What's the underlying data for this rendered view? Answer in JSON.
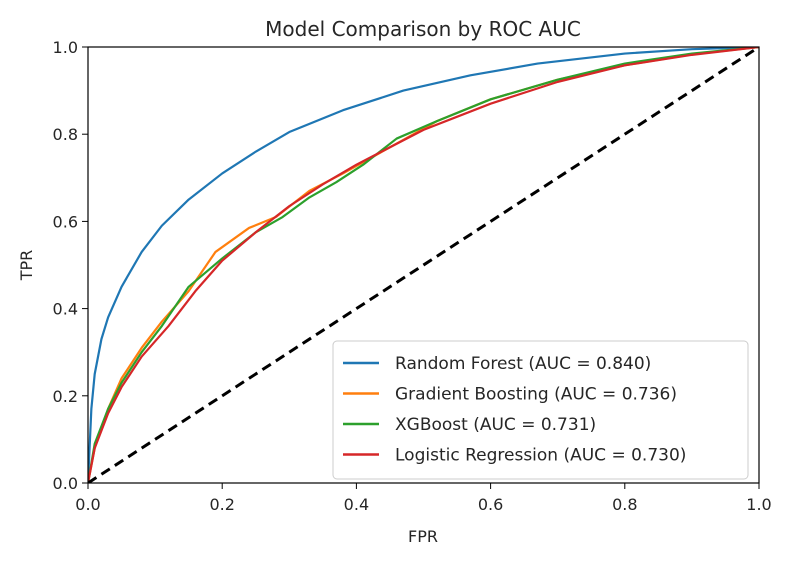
{
  "chart_data": {
    "type": "line",
    "title": "Model Comparison by ROC AUC",
    "xlabel": "FPR",
    "ylabel": "TPR",
    "xlim": [
      0.0,
      1.0
    ],
    "ylim": [
      0.0,
      1.0
    ],
    "xticks": [
      "0.0",
      "0.2",
      "0.4",
      "0.6",
      "0.8",
      "1.0"
    ],
    "yticks": [
      "0.0",
      "0.2",
      "0.4",
      "0.6",
      "0.8",
      "1.0"
    ],
    "grid": false,
    "legend_position": "lower-right",
    "series": [
      {
        "name": "Random Forest (AUC = 0.840)",
        "color": "#1f77b4",
        "x": [
          0,
          0.005,
          0.01,
          0.02,
          0.03,
          0.05,
          0.08,
          0.11,
          0.15,
          0.2,
          0.25,
          0.3,
          0.38,
          0.47,
          0.57,
          0.67,
          0.8,
          0.9,
          1.0
        ],
        "y": [
          0,
          0.17,
          0.25,
          0.33,
          0.38,
          0.45,
          0.53,
          0.59,
          0.65,
          0.71,
          0.76,
          0.805,
          0.855,
          0.9,
          0.935,
          0.962,
          0.985,
          0.995,
          1.0
        ]
      },
      {
        "name": "Gradient Boosting (AUC = 0.736)",
        "color": "#ff7f0e",
        "x": [
          0,
          0.01,
          0.03,
          0.05,
          0.08,
          0.11,
          0.15,
          0.19,
          0.24,
          0.28,
          0.33,
          0.38,
          0.45,
          0.52,
          0.6,
          0.7,
          0.8,
          0.9,
          1.0
        ],
        "y": [
          0,
          0.08,
          0.17,
          0.24,
          0.31,
          0.37,
          0.44,
          0.53,
          0.585,
          0.61,
          0.67,
          0.71,
          0.77,
          0.83,
          0.88,
          0.925,
          0.958,
          0.983,
          1.0
        ]
      },
      {
        "name": "XGBoost (AUC = 0.731)",
        "color": "#2ca02c",
        "x": [
          0,
          0.01,
          0.03,
          0.05,
          0.08,
          0.11,
          0.15,
          0.2,
          0.25,
          0.29,
          0.33,
          0.37,
          0.41,
          0.46,
          0.52,
          0.6,
          0.7,
          0.8,
          0.9,
          1.0
        ],
        "y": [
          0,
          0.09,
          0.17,
          0.23,
          0.3,
          0.36,
          0.45,
          0.515,
          0.575,
          0.61,
          0.655,
          0.69,
          0.73,
          0.79,
          0.83,
          0.88,
          0.925,
          0.962,
          0.985,
          1.0
        ]
      },
      {
        "name": "Logistic Regression (AUC = 0.730)",
        "color": "#d62728",
        "x": [
          0,
          0.01,
          0.03,
          0.05,
          0.08,
          0.12,
          0.16,
          0.2,
          0.25,
          0.3,
          0.35,
          0.4,
          0.45,
          0.5,
          0.6,
          0.7,
          0.8,
          0.9,
          1.0
        ],
        "y": [
          0,
          0.08,
          0.16,
          0.22,
          0.29,
          0.36,
          0.44,
          0.51,
          0.575,
          0.635,
          0.685,
          0.73,
          0.77,
          0.81,
          0.87,
          0.92,
          0.958,
          0.982,
          1.0
        ]
      },
      {
        "name": "",
        "color": "#000000",
        "dashed": true,
        "x": [
          0,
          1
        ],
        "y": [
          0,
          1
        ]
      }
    ]
  }
}
